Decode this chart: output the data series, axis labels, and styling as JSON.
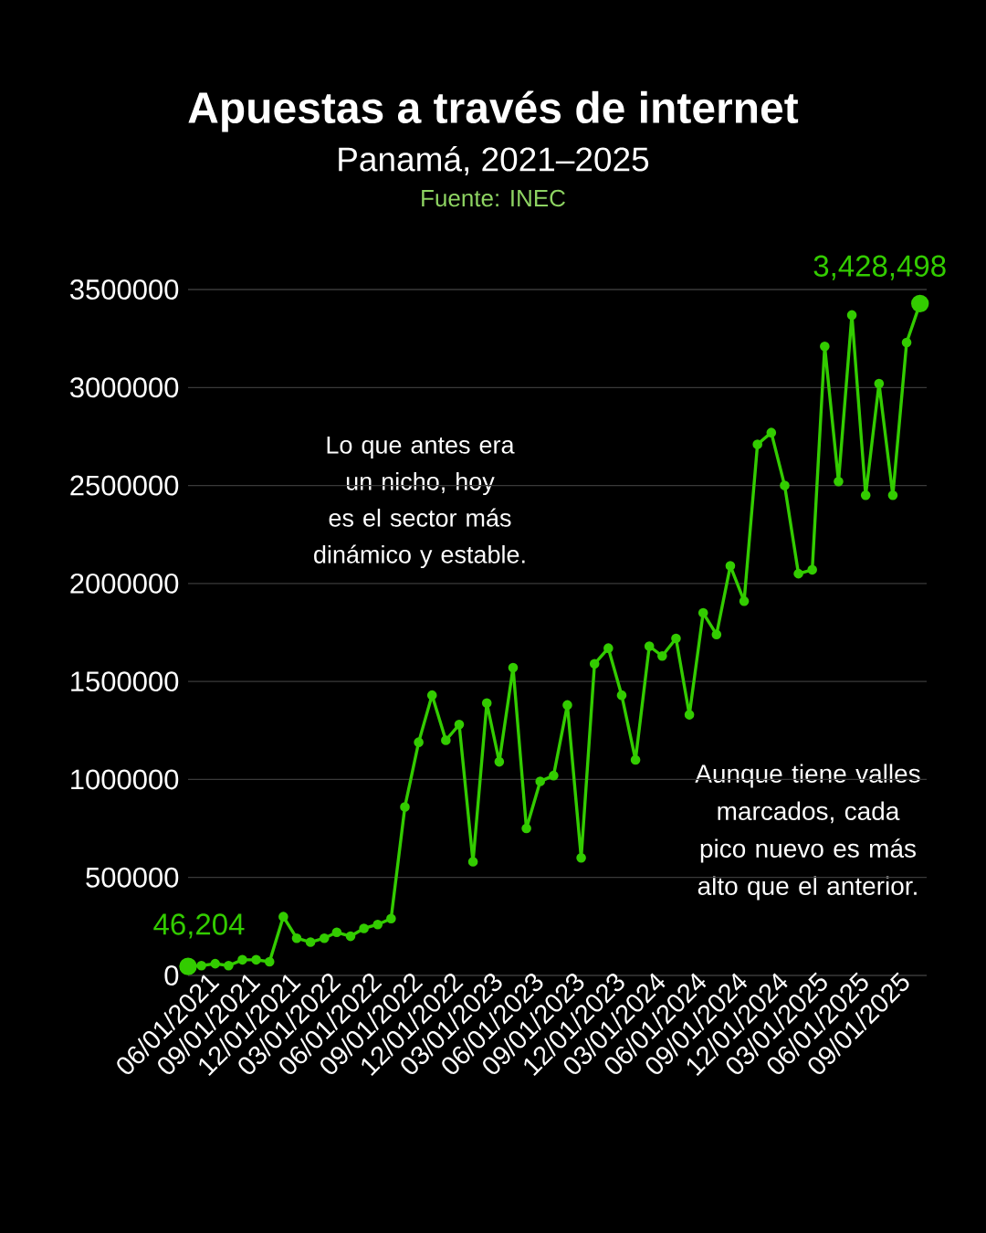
{
  "chart_data": {
    "type": "line",
    "title": "Apuestas a través de internet",
    "subtitle": "Panamá, 2021–2025",
    "annotations": [
      "Fuente: INEC",
      "Lo que antes era un nicho, hoy es el sector más dinámico y estable.",
      "Aunque tiene valles marcados, cada pico nuevo es más alto que el anterior."
    ],
    "x": [
      "2021-04",
      "2021-05",
      "2021-06",
      "2021-07",
      "2021-08",
      "2021-09",
      "2021-10",
      "2021-11",
      "2021-12",
      "2022-01",
      "2022-02",
      "2022-03",
      "2022-04",
      "2022-05",
      "2022-06",
      "2022-07",
      "2022-08",
      "2022-09",
      "2022-10",
      "2022-11",
      "2022-12",
      "2023-01",
      "2023-02",
      "2023-03",
      "2023-04",
      "2023-05",
      "2023-06",
      "2023-07",
      "2023-08",
      "2023-09",
      "2023-10",
      "2023-11",
      "2023-12",
      "2024-01",
      "2024-02",
      "2024-03",
      "2024-04",
      "2024-05",
      "2024-06",
      "2024-07",
      "2024-08",
      "2024-09",
      "2024-10",
      "2024-11",
      "2024-12",
      "2025-01",
      "2025-02",
      "2025-03",
      "2025-04",
      "2025-05",
      "2025-06",
      "2025-07",
      "2025-08",
      "2025-09",
      "2025-10"
    ],
    "values": [
      46204,
      50000,
      60000,
      50000,
      80000,
      80000,
      70000,
      300000,
      190000,
      170000,
      190000,
      220000,
      200000,
      240000,
      260000,
      290000,
      860000,
      1190000,
      1430000,
      1200000,
      1280000,
      580000,
      1390000,
      1090000,
      1570000,
      750000,
      990000,
      1020000,
      1380000,
      600000,
      1590000,
      1670000,
      1430000,
      1100000,
      1680000,
      1630000,
      1720000,
      1330000,
      1850000,
      1740000,
      2090000,
      1910000,
      2710000,
      2770000,
      2500000,
      2050000,
      2070000,
      3210000,
      2520000,
      3370000,
      2450000,
      3020000,
      2450000,
      3230000,
      3428498
    ],
    "value_labels": [
      "46,204",
      null,
      null,
      null,
      null,
      null,
      null,
      null,
      null,
      null,
      null,
      null,
      null,
      null,
      null,
      null,
      null,
      null,
      null,
      null,
      null,
      null,
      null,
      null,
      null,
      null,
      null,
      null,
      null,
      null,
      null,
      null,
      null,
      null,
      null,
      null,
      null,
      null,
      null,
      null,
      null,
      null,
      null,
      null,
      null,
      null,
      null,
      null,
      null,
      null,
      null,
      null,
      null,
      null,
      "3,428,498"
    ],
    "color": "#33cc00",
    "marker": "circle",
    "line_style": "solid",
    "grid": "y",
    "xlim": [
      "2021-04-01",
      "2025-10-16"
    ],
    "ylim": [
      0,
      3500000
    ],
    "xticks": [
      {
        "value": "2021-06-01",
        "label": "06/01/2021"
      },
      {
        "value": "2021-09-01",
        "label": "09/01/2021"
      },
      {
        "value": "2021-12-01",
        "label": "12/01/2021"
      },
      {
        "value": "2022-03-01",
        "label": "03/01/2022"
      },
      {
        "value": "2022-06-01",
        "label": "06/01/2022"
      },
      {
        "value": "2022-09-01",
        "label": "09/01/2022"
      },
      {
        "value": "2022-12-01",
        "label": "12/01/2022"
      },
      {
        "value": "2023-03-01",
        "label": "03/01/2023"
      },
      {
        "value": "2023-06-01",
        "label": "06/01/2023"
      },
      {
        "value": "2023-09-01",
        "label": "09/01/2023"
      },
      {
        "value": "2023-12-01",
        "label": "12/01/2023"
      },
      {
        "value": "2024-03-01",
        "label": "03/01/2024"
      },
      {
        "value": "2024-06-01",
        "label": "06/01/2024"
      },
      {
        "value": "2024-09-01",
        "label": "09/01/2024"
      },
      {
        "value": "2024-12-01",
        "label": "12/01/2024"
      },
      {
        "value": "2025-03-01",
        "label": "03/01/2025"
      },
      {
        "value": "2025-06-01",
        "label": "06/01/2025"
      },
      {
        "value": "2025-09-01",
        "label": "09/01/2025"
      }
    ],
    "yticks": [
      0,
      500000,
      1000000,
      1500000,
      2000000,
      2500000,
      3000000,
      3500000
    ]
  }
}
